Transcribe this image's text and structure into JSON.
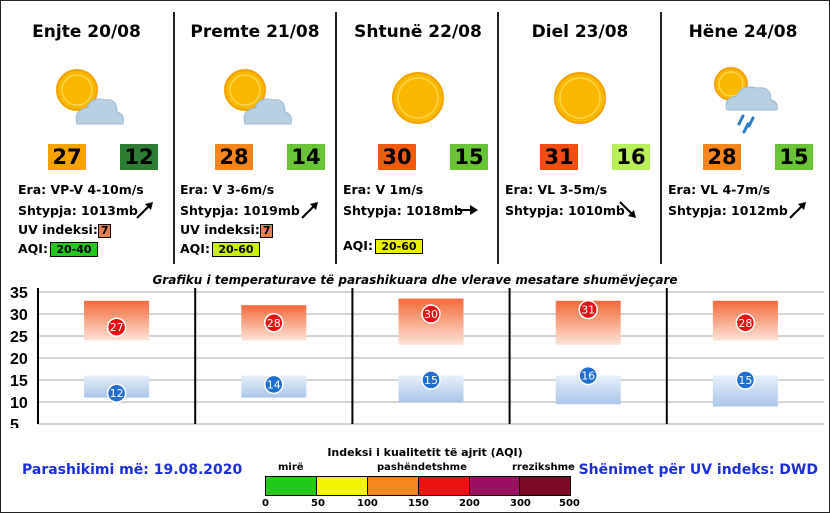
{
  "days": [
    {
      "title": "Enjte 20/08",
      "icon": "sun-cloud-icon",
      "tmax": "27",
      "tmin": "12",
      "tmax_color": "#f6a300",
      "tmin_color": "#2e7d32",
      "wind": "Era: VP-V 4-10m/s",
      "pressure": "Shtypja: 1013mb",
      "uv_label": "UV indeksi:",
      "uv": "7",
      "aqi_label": "AQI:",
      "aqi": "20-40",
      "aqi_color": "#22c81a",
      "arrow": "arrow-up-right-icon"
    },
    {
      "title": "Premte 21/08",
      "icon": "sun-cloud-icon",
      "tmax": "28",
      "tmin": "14",
      "tmax_color": "#f7861e",
      "tmin_color": "#6ac437",
      "wind": "Era: V 3-6m/s",
      "pressure": "Shtypja: 1019mb",
      "uv_label": "UV indeksi:",
      "uv": "7",
      "aqi_label": "AQI:",
      "aqi": "20-60",
      "aqi_color": "#c6f000",
      "arrow": "arrow-up-right-icon"
    },
    {
      "title": "Shtunë 22/08",
      "icon": "sun-icon",
      "tmax": "30",
      "tmin": "15",
      "tmax_color": "#f25a10",
      "tmin_color": "#6ac437",
      "wind": "Era: V 1m/s",
      "pressure": "Shtypja: 1018mb",
      "aqi_label": "AQI:",
      "aqi": "20-60",
      "aqi_color": "#e8f000",
      "arrow": "arrow-right-icon"
    },
    {
      "title": "Diel 23/08",
      "icon": "sun-icon",
      "tmax": "31",
      "tmin": "16",
      "tmax_color": "#f24d12",
      "tmin_color": "#b8f05a",
      "wind": "Era: VL 3-5m/s",
      "pressure": "Shtypja: 1010mb",
      "arrow": "arrow-down-right-icon"
    },
    {
      "title": "Hëne 24/08",
      "icon": "sun-cloud-rain-icon",
      "tmax": "28",
      "tmin": "15",
      "tmax_color": "#f7861e",
      "tmin_color": "#6ac437",
      "wind": "Era: VL 4-7m/s",
      "pressure": "Shtypja: 1012mb",
      "arrow": "arrow-up-right-icon"
    }
  ],
  "chart_data": {
    "type": "bar",
    "title": "Grafiku i temperaturave të parashikuara dhe vlerave mesatare shumëvjeçare",
    "categories": [
      "Enjte 20/08",
      "Premte 21/08",
      "Shtunë 22/08",
      "Diel 23/08",
      "Hëne 24/08"
    ],
    "series": [
      {
        "values": [
          27,
          28,
          30,
          31,
          28
        ]
      },
      {
        "values": [
          12,
          14,
          15,
          16,
          15
        ]
      }
    ],
    "max_avg_range": [
      [
        24,
        33
      ],
      [
        24,
        32
      ],
      [
        23,
        33.5
      ],
      [
        23,
        33
      ],
      [
        24,
        33
      ]
    ],
    "min_avg_range": [
      [
        11,
        16
      ],
      [
        11,
        16
      ],
      [
        10,
        16
      ],
      [
        9.5,
        16
      ],
      [
        9,
        16
      ]
    ],
    "ylim": [
      5,
      35
    ],
    "yticks": [
      "35",
      "30",
      "25",
      "20",
      "15",
      "10",
      "5"
    ],
    "grid": true,
    "colors": {
      "max_marker": "#e41212",
      "min_marker": "#1f6fd0"
    }
  },
  "footer": {
    "forecast": "Parashikimi më: 19.08.2020",
    "uv_note": "Shënimet për UV indeks: DWD"
  },
  "aqi_legend": {
    "title": "Indeksi i kualitetit të ajrit (AQI)",
    "label_good": "mirë",
    "label_unhealthy": "pashëndetshme",
    "label_hazardous": "rrezikshme",
    "ticks": [
      "0",
      "50",
      "100",
      "150",
      "200",
      "300",
      "500"
    ],
    "colors": [
      "#22c81a",
      "#f4f400",
      "#f7861e",
      "#ee1111",
      "#9b1063",
      "#7a0a26"
    ]
  }
}
